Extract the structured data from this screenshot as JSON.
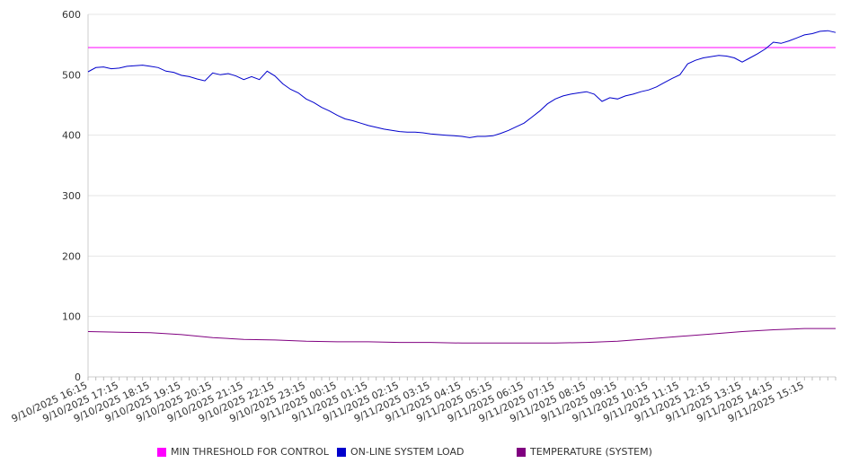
{
  "chart_data": {
    "type": "line",
    "title": "",
    "xlabel": "",
    "ylabel": "",
    "ylim": [
      0,
      600
    ],
    "yticks": [
      0,
      100,
      200,
      300,
      400,
      500,
      600
    ],
    "grid": true,
    "legend_position": "bottom",
    "x_tick_labels": [
      "9/10/2025 16:15",
      "9/10/2025 17:15",
      "9/10/2025 18:15",
      "9/10/2025 19:15",
      "9/10/2025 20:15",
      "9/10/2025 21:15",
      "9/10/2025 22:15",
      "9/10/2025 23:15",
      "9/11/2025 00:15",
      "9/11/2025 01:15",
      "9/11/2025 02:15",
      "9/11/2025 03:15",
      "9/11/2025 04:15",
      "9/11/2025 05:15",
      "9/11/2025 06:15",
      "9/11/2025 07:15",
      "9/11/2025 08:15",
      "9/11/2025 09:15",
      "9/11/2025 10:15",
      "9/11/2025 11:15",
      "9/11/2025 12:15",
      "9/11/2025 13:15",
      "9/11/2025 14:15",
      "9/11/2025 15:15"
    ],
    "x_start": "9/10/2025 16:15",
    "x_end": "9/11/2025 16:15",
    "series": [
      {
        "name": "MIN THRESHOLD FOR CONTROL",
        "color": "#ff00ff",
        "points": [
          [
            "9/10/2025 16:15",
            545
          ],
          [
            "9/11/2025 16:15",
            545
          ]
        ]
      },
      {
        "name": "ON-LINE SYSTEM LOAD",
        "color": "#0000cc",
        "points": [
          [
            "9/10/2025 16:15",
            505
          ],
          [
            "9/10/2025 16:30",
            512
          ],
          [
            "9/10/2025 16:45",
            513
          ],
          [
            "9/10/2025 17:00",
            510
          ],
          [
            "9/10/2025 17:15",
            511
          ],
          [
            "9/10/2025 17:30",
            514
          ],
          [
            "9/10/2025 17:45",
            515
          ],
          [
            "9/10/2025 18:00",
            516
          ],
          [
            "9/10/2025 18:15",
            514
          ],
          [
            "9/10/2025 18:30",
            512
          ],
          [
            "9/10/2025 18:45",
            506
          ],
          [
            "9/10/2025 19:00",
            504
          ],
          [
            "9/10/2025 19:15",
            499
          ],
          [
            "9/10/2025 19:30",
            497
          ],
          [
            "9/10/2025 19:45",
            493
          ],
          [
            "9/10/2025 20:00",
            490
          ],
          [
            "9/10/2025 20:15",
            503
          ],
          [
            "9/10/2025 20:30",
            500
          ],
          [
            "9/10/2025 20:45",
            502
          ],
          [
            "9/10/2025 21:00",
            498
          ],
          [
            "9/10/2025 21:15",
            492
          ],
          [
            "9/10/2025 21:30",
            497
          ],
          [
            "9/10/2025 21:45",
            492
          ],
          [
            "9/10/2025 22:00",
            506
          ],
          [
            "9/10/2025 22:15",
            498
          ],
          [
            "9/10/2025 22:30",
            485
          ],
          [
            "9/10/2025 22:45",
            476
          ],
          [
            "9/10/2025 23:00",
            470
          ],
          [
            "9/10/2025 23:15",
            460
          ],
          [
            "9/10/2025 23:30",
            454
          ],
          [
            "9/10/2025 23:45",
            446
          ],
          [
            "9/11/2025 00:00",
            440
          ],
          [
            "9/11/2025 00:15",
            433
          ],
          [
            "9/11/2025 00:30",
            427
          ],
          [
            "9/11/2025 00:45",
            424
          ],
          [
            "9/11/2025 01:00",
            420
          ],
          [
            "9/11/2025 01:15",
            416
          ],
          [
            "9/11/2025 01:30",
            413
          ],
          [
            "9/11/2025 01:45",
            410
          ],
          [
            "9/11/2025 02:00",
            408
          ],
          [
            "9/11/2025 02:15",
            406
          ],
          [
            "9/11/2025 02:30",
            405
          ],
          [
            "9/11/2025 02:45",
            405
          ],
          [
            "9/11/2025 03:00",
            404
          ],
          [
            "9/11/2025 03:15",
            402
          ],
          [
            "9/11/2025 03:30",
            401
          ],
          [
            "9/11/2025 03:45",
            400
          ],
          [
            "9/11/2025 04:00",
            399
          ],
          [
            "9/11/2025 04:15",
            398
          ],
          [
            "9/11/2025 04:30",
            396
          ],
          [
            "9/11/2025 04:45",
            398
          ],
          [
            "9/11/2025 05:00",
            398
          ],
          [
            "9/11/2025 05:15",
            399
          ],
          [
            "9/11/2025 05:30",
            403
          ],
          [
            "9/11/2025 05:45",
            408
          ],
          [
            "9/11/2025 06:00",
            414
          ],
          [
            "9/11/2025 06:15",
            420
          ],
          [
            "9/11/2025 06:30",
            430
          ],
          [
            "9/11/2025 06:45",
            440
          ],
          [
            "9/11/2025 07:00",
            452
          ],
          [
            "9/11/2025 07:15",
            460
          ],
          [
            "9/11/2025 07:30",
            465
          ],
          [
            "9/11/2025 07:45",
            468
          ],
          [
            "9/11/2025 08:00",
            470
          ],
          [
            "9/11/2025 08:15",
            472
          ],
          [
            "9/11/2025 08:30",
            468
          ],
          [
            "9/11/2025 08:45",
            456
          ],
          [
            "9/11/2025 09:00",
            462
          ],
          [
            "9/11/2025 09:15",
            460
          ],
          [
            "9/11/2025 09:30",
            465
          ],
          [
            "9/11/2025 09:45",
            468
          ],
          [
            "9/11/2025 10:00",
            472
          ],
          [
            "9/11/2025 10:15",
            475
          ],
          [
            "9/11/2025 10:30",
            480
          ],
          [
            "9/11/2025 10:45",
            487
          ],
          [
            "9/11/2025 11:00",
            494
          ],
          [
            "9/11/2025 11:15",
            500
          ],
          [
            "9/11/2025 11:30",
            518
          ],
          [
            "9/11/2025 11:45",
            524
          ],
          [
            "9/11/2025 12:00",
            528
          ],
          [
            "9/11/2025 12:15",
            530
          ],
          [
            "9/11/2025 12:30",
            532
          ],
          [
            "9/11/2025 12:45",
            531
          ],
          [
            "9/11/2025 13:00",
            528
          ],
          [
            "9/11/2025 13:15",
            521
          ],
          [
            "9/11/2025 13:30",
            528
          ],
          [
            "9/11/2025 13:45",
            535
          ],
          [
            "9/11/2025 14:00",
            543
          ],
          [
            "9/11/2025 14:15",
            554
          ],
          [
            "9/11/2025 14:30",
            552
          ],
          [
            "9/11/2025 14:45",
            556
          ],
          [
            "9/11/2025 15:00",
            561
          ],
          [
            "9/11/2025 15:15",
            566
          ],
          [
            "9/11/2025 15:30",
            568
          ],
          [
            "9/11/2025 15:45",
            572
          ],
          [
            "9/11/2025 16:00",
            573
          ],
          [
            "9/11/2025 16:15",
            570
          ]
        ]
      },
      {
        "name": "TEMPERATURE (SYSTEM)",
        "color": "#800080",
        "points": [
          [
            "9/10/2025 16:15",
            75
          ],
          [
            "9/10/2025 17:15",
            74
          ],
          [
            "9/10/2025 18:15",
            73
          ],
          [
            "9/10/2025 19:15",
            70
          ],
          [
            "9/10/2025 20:15",
            65
          ],
          [
            "9/10/2025 21:15",
            62
          ],
          [
            "9/10/2025 22:15",
            61
          ],
          [
            "9/10/2025 23:15",
            59
          ],
          [
            "9/11/2025 00:15",
            58
          ],
          [
            "9/11/2025 01:15",
            58
          ],
          [
            "9/11/2025 02:15",
            57
          ],
          [
            "9/11/2025 03:15",
            57
          ],
          [
            "9/11/2025 04:15",
            56
          ],
          [
            "9/11/2025 05:15",
            56
          ],
          [
            "9/11/2025 06:15",
            56
          ],
          [
            "9/11/2025 07:15",
            56
          ],
          [
            "9/11/2025 08:15",
            57
          ],
          [
            "9/11/2025 09:15",
            59
          ],
          [
            "9/11/2025 10:15",
            63
          ],
          [
            "9/11/2025 11:15",
            67
          ],
          [
            "9/11/2025 12:15",
            71
          ],
          [
            "9/11/2025 13:15",
            75
          ],
          [
            "9/11/2025 14:15",
            78
          ],
          [
            "9/11/2025 15:15",
            80
          ],
          [
            "9/11/2025 16:15",
            80
          ]
        ]
      }
    ]
  }
}
